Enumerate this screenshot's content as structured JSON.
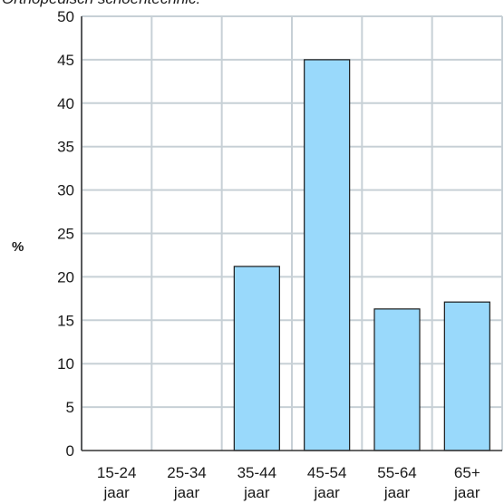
{
  "chart_data": {
    "type": "bar",
    "title": "Orthopedisch schoentechnic:",
    "xlabel": "",
    "ylabel": "%",
    "categories": [
      [
        "15-24",
        "jaar"
      ],
      [
        "25-34",
        "jaar"
      ],
      [
        "35-44",
        "jaar"
      ],
      [
        "45-54",
        "jaar"
      ],
      [
        "55-64",
        "jaar"
      ],
      [
        "65+",
        "jaar"
      ]
    ],
    "values": [
      0,
      0,
      21.2,
      45,
      16.3,
      17.1
    ],
    "ylim": [
      0,
      50
    ],
    "yticks": [
      0,
      5,
      10,
      15,
      20,
      25,
      30,
      35,
      40,
      45,
      50
    ],
    "grid": true,
    "colors": {
      "bar_fill": "#99d9fb",
      "bar_stroke": "#1a1a1a",
      "grid": "#c7d0d6",
      "axis": "#333333"
    }
  }
}
